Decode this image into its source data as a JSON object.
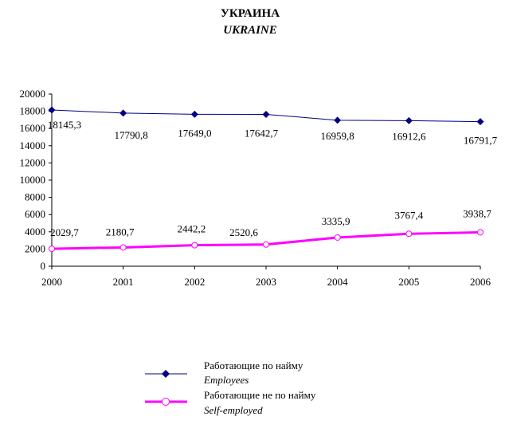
{
  "chart_data": {
    "type": "line",
    "title": "УКРАИНА",
    "subtitle": "UKRAINE",
    "categories": [
      "2000",
      "2001",
      "2002",
      "2003",
      "2004",
      "2005",
      "2006"
    ],
    "ylim": [
      0,
      20000
    ],
    "yticks": [
      "0",
      "2000",
      "4000",
      "6000",
      "8000",
      "10000",
      "12000",
      "14000",
      "16000",
      "18000",
      "20000"
    ],
    "grid": false,
    "legend_position": "bottom",
    "series": [
      {
        "name": "Работающие по найму",
        "name_en": "Employees",
        "color": "#000080",
        "marker": "diamond",
        "values": [
          18145.3,
          17790.8,
          17649.0,
          17642.7,
          16959.8,
          16912.6,
          16791.7
        ],
        "labels": [
          "18145,3",
          "17790,8",
          "17649,0",
          "17642,7",
          "16959,8",
          "16912,6",
          "16791,7"
        ]
      },
      {
        "name": "Работающие не по найму",
        "name_en": "Self-employed",
        "color": "#ff00ff",
        "marker": "circle",
        "values": [
          2029.7,
          2180.7,
          2442.2,
          2520.6,
          3335.9,
          3767.4,
          3938.7
        ],
        "labels": [
          "2029,7",
          "2180,7",
          "2442,2",
          "2520,6",
          "3335,9",
          "3767,4",
          "3938,7"
        ]
      }
    ]
  }
}
